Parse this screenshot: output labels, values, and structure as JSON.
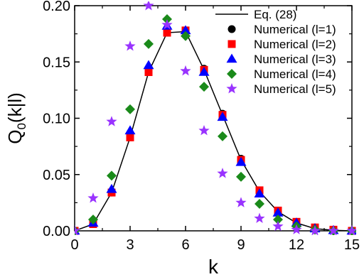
{
  "chart_data": {
    "type": "scatter",
    "xlabel": "k",
    "ylabel": {
      "main": "Q",
      "sub": "0",
      "tail": "(k|l)"
    },
    "xlim": [
      0,
      15
    ],
    "ylim": [
      0,
      0.2
    ],
    "x_ticks": [
      0,
      3,
      6,
      9,
      12,
      15
    ],
    "y_ticks": [
      0.0,
      0.05,
      0.1,
      0.15,
      0.2
    ],
    "x_tick_labels": [
      "0",
      "3",
      "6",
      "9",
      "12",
      "15"
    ],
    "y_tick_labels": [
      "0.00",
      "0.05",
      "0.10",
      "0.15",
      "0.20"
    ],
    "grid": false,
    "legend_position": "top-right",
    "series": [
      {
        "name": "Eq. (28)",
        "kind": "line",
        "color": "#000000",
        "x": [
          0,
          1,
          2,
          3,
          4,
          5,
          6,
          7,
          8,
          9,
          10,
          11,
          12,
          13,
          14,
          15
        ],
        "y": [
          0.0,
          0.006,
          0.034,
          0.083,
          0.141,
          0.176,
          0.177,
          0.143,
          0.103,
          0.063,
          0.035,
          0.017,
          0.007,
          0.002,
          0.0005,
          0.0
        ]
      },
      {
        "name": "Numerical (l=1)",
        "kind": "marker",
        "marker": "circle",
        "color": "#000000",
        "x": [
          0,
          1,
          2,
          3,
          4,
          5,
          6,
          7,
          8,
          9,
          10,
          11,
          12,
          13,
          14,
          15
        ],
        "y": [
          0.0,
          0.006,
          0.034,
          0.083,
          0.141,
          0.176,
          0.178,
          0.144,
          0.104,
          0.064,
          0.036,
          0.018,
          0.008,
          0.003,
          0.001,
          0.0
        ]
      },
      {
        "name": "Numerical (l=2)",
        "kind": "marker",
        "marker": "square",
        "color": "#ff0000",
        "x": [
          0,
          1,
          2,
          3,
          4,
          5,
          6,
          7,
          8,
          9,
          10,
          11,
          12,
          13,
          14,
          15
        ],
        "y": [
          0.0,
          0.006,
          0.034,
          0.083,
          0.141,
          0.176,
          0.178,
          0.143,
          0.103,
          0.063,
          0.036,
          0.018,
          0.008,
          0.003,
          0.001,
          0.0
        ]
      },
      {
        "name": "Numerical (l=3)",
        "kind": "marker",
        "marker": "triangle",
        "color": "#0000ff",
        "x": [
          0,
          1,
          2,
          3,
          4,
          5,
          6,
          7,
          8,
          9,
          10,
          11,
          12,
          13,
          14,
          15
        ],
        "y": [
          0.0,
          0.007,
          0.037,
          0.089,
          0.147,
          0.182,
          0.178,
          0.141,
          0.101,
          0.061,
          0.033,
          0.016,
          0.007,
          0.002,
          0.0005,
          0.0
        ]
      },
      {
        "name": "Numerical (l=4)",
        "kind": "marker",
        "marker": "diamond",
        "color": "#1a8a1a",
        "x": [
          0,
          1,
          2,
          3,
          4,
          5,
          6,
          7,
          8,
          9,
          10,
          11,
          12,
          13,
          14,
          15
        ],
        "y": [
          0.0,
          0.01,
          0.049,
          0.108,
          0.166,
          0.188,
          0.173,
          0.128,
          0.084,
          0.048,
          0.024,
          0.01,
          0.004,
          0.001,
          0.0,
          0.0
        ]
      },
      {
        "name": "Numerical (l=5)",
        "kind": "marker",
        "marker": "star",
        "color": "#9933ff",
        "x": [
          0,
          1,
          2,
          3,
          4,
          5,
          6,
          7,
          8,
          9,
          10,
          11,
          12,
          13,
          14,
          15
        ],
        "y": [
          0.0,
          0.029,
          0.097,
          0.164,
          0.2,
          0.183,
          0.142,
          0.089,
          0.051,
          0.025,
          0.011,
          0.004,
          0.001,
          0.0,
          0.0,
          0.0
        ]
      }
    ]
  }
}
